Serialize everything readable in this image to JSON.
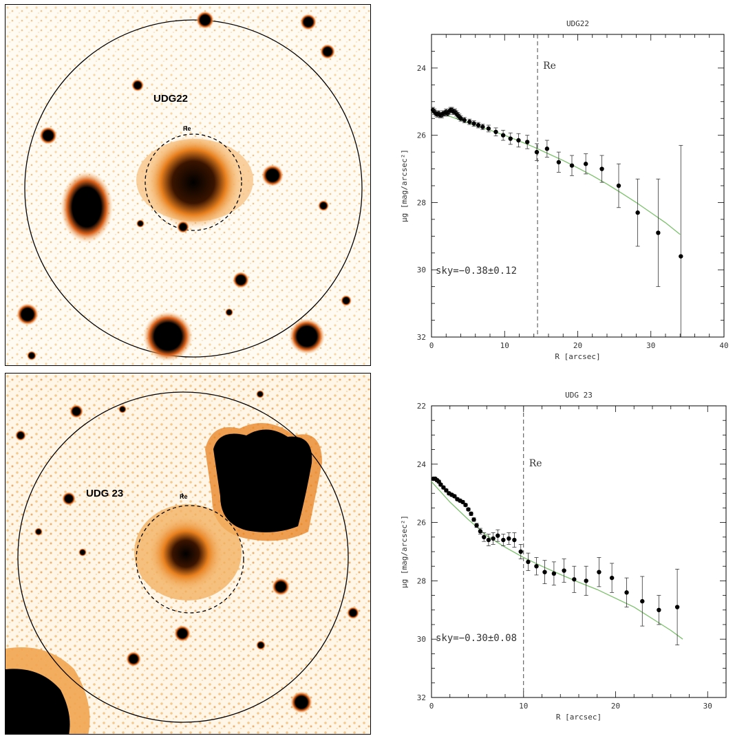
{
  "panels": {
    "udg22_image": {
      "label": "UDG22",
      "re_label": "Re"
    },
    "udg23_image": {
      "label": "UDG 23",
      "re_label": "Re"
    }
  },
  "colors": {
    "stellar_core": "#000000",
    "halo_orange": "#e8801e",
    "halo_light": "#f5c07a",
    "model_line": "#7ac16a"
  },
  "chart_data": [
    {
      "type": "scatter",
      "title": "UDG22",
      "xlabel": "R [arcsec]",
      "ylabel": "μg [mag/arcsec²]",
      "xlim": [
        0,
        40
      ],
      "ylim": [
        32,
        23
      ],
      "y_inverted": true,
      "xticks": [
        0,
        10,
        20,
        30,
        40
      ],
      "yticks": [
        24,
        26,
        28,
        30,
        32
      ],
      "re_line_x": 14.5,
      "re_label": "Re",
      "annotation": "sky=−0.38±0.12",
      "series": [
        {
          "kind": "points",
          "x": [
            0.2,
            0.4,
            0.6,
            0.8,
            1.0,
            1.2,
            1.4,
            1.6,
            1.8,
            2.0,
            2.2,
            2.4,
            2.6,
            2.8,
            3.0,
            3.2,
            3.4,
            3.6,
            3.8,
            4.0,
            4.5,
            5.2,
            5.8,
            6.4,
            7.0,
            7.8,
            8.8,
            9.8,
            10.8,
            11.9,
            13.1,
            14.4,
            15.8,
            17.4,
            19.2,
            21.1,
            23.3,
            25.6,
            28.2,
            31.0,
            34.1
          ],
          "y": [
            25.25,
            25.3,
            25.35,
            25.38,
            25.35,
            25.4,
            25.4,
            25.35,
            25.35,
            25.3,
            25.35,
            25.3,
            25.25,
            25.25,
            25.3,
            25.3,
            25.35,
            25.4,
            25.45,
            25.5,
            25.55,
            25.6,
            25.65,
            25.7,
            25.75,
            25.8,
            25.9,
            26.0,
            26.1,
            26.15,
            26.2,
            26.5,
            26.4,
            26.8,
            26.9,
            26.85,
            27.0,
            27.5,
            28.3,
            28.9,
            29.6
          ],
          "err": [
            0.08,
            0.08,
            0.08,
            0.08,
            0.08,
            0.08,
            0.08,
            0.08,
            0.08,
            0.08,
            0.08,
            0.08,
            0.08,
            0.08,
            0.08,
            0.08,
            0.08,
            0.08,
            0.08,
            0.08,
            0.08,
            0.08,
            0.08,
            0.08,
            0.08,
            0.1,
            0.12,
            0.15,
            0.17,
            0.2,
            0.2,
            0.25,
            0.25,
            0.3,
            0.3,
            0.3,
            0.4,
            0.65,
            1.0,
            1.6,
            3.3
          ]
        },
        {
          "kind": "model",
          "x": [
            0,
            2,
            4,
            6,
            8,
            10,
            12,
            14,
            16,
            18,
            20,
            22,
            24,
            26,
            28,
            30,
            32,
            34
          ],
          "y": [
            25.3,
            25.4,
            25.55,
            25.7,
            25.85,
            26.0,
            26.17,
            26.35,
            26.55,
            26.75,
            26.97,
            27.2,
            27.45,
            27.72,
            28.0,
            28.3,
            28.6,
            28.95
          ]
        }
      ]
    },
    {
      "type": "scatter",
      "title": "UDG 23",
      "xlabel": "R [arcsec]",
      "ylabel": "μg [mag/arcsec²]",
      "xlim": [
        0,
        32
      ],
      "ylim": [
        32,
        22
      ],
      "y_inverted": true,
      "xticks": [
        0,
        10,
        20,
        30
      ],
      "yticks": [
        22,
        24,
        26,
        28,
        30,
        32
      ],
      "re_line_x": 10,
      "re_label": "Re",
      "annotation": "sky=−0.30±0.08",
      "series": [
        {
          "kind": "points",
          "x": [
            0.2,
            0.4,
            0.6,
            0.8,
            1.0,
            1.3,
            1.6,
            1.9,
            2.2,
            2.5,
            2.8,
            3.1,
            3.4,
            3.7,
            4.0,
            4.3,
            4.6,
            4.9,
            5.3,
            5.7,
            6.2,
            6.7,
            7.2,
            7.8,
            8.4,
            9.0,
            9.7,
            10.5,
            11.4,
            12.3,
            13.3,
            14.4,
            15.5,
            16.8,
            18.2,
            19.6,
            21.2,
            22.9,
            24.7,
            26.7
          ],
          "y": [
            24.5,
            24.5,
            24.55,
            24.6,
            24.7,
            24.8,
            24.9,
            25.0,
            25.05,
            25.1,
            25.2,
            25.25,
            25.3,
            25.4,
            25.55,
            25.7,
            25.9,
            26.1,
            26.3,
            26.5,
            26.6,
            26.55,
            26.45,
            26.6,
            26.55,
            26.6,
            27.0,
            27.35,
            27.5,
            27.7,
            27.75,
            27.65,
            27.95,
            28.0,
            27.7,
            27.9,
            28.4,
            28.7,
            29.0,
            28.9
          ],
          "err": [
            0.05,
            0.05,
            0.05,
            0.05,
            0.05,
            0.05,
            0.05,
            0.05,
            0.05,
            0.05,
            0.05,
            0.05,
            0.05,
            0.05,
            0.05,
            0.06,
            0.06,
            0.07,
            0.1,
            0.15,
            0.2,
            0.2,
            0.2,
            0.2,
            0.2,
            0.25,
            0.25,
            0.3,
            0.3,
            0.4,
            0.4,
            0.4,
            0.45,
            0.5,
            0.5,
            0.5,
            0.5,
            0.85,
            0.5,
            1.3
          ]
        },
        {
          "kind": "model",
          "x": [
            0,
            2,
            4,
            6,
            8,
            10,
            12,
            14,
            16,
            18,
            20,
            22,
            24,
            26,
            27.3
          ],
          "y": [
            24.6,
            25.3,
            25.9,
            26.45,
            26.85,
            27.2,
            27.5,
            27.78,
            28.05,
            28.3,
            28.6,
            28.9,
            29.3,
            29.7,
            30.0
          ]
        }
      ]
    }
  ]
}
